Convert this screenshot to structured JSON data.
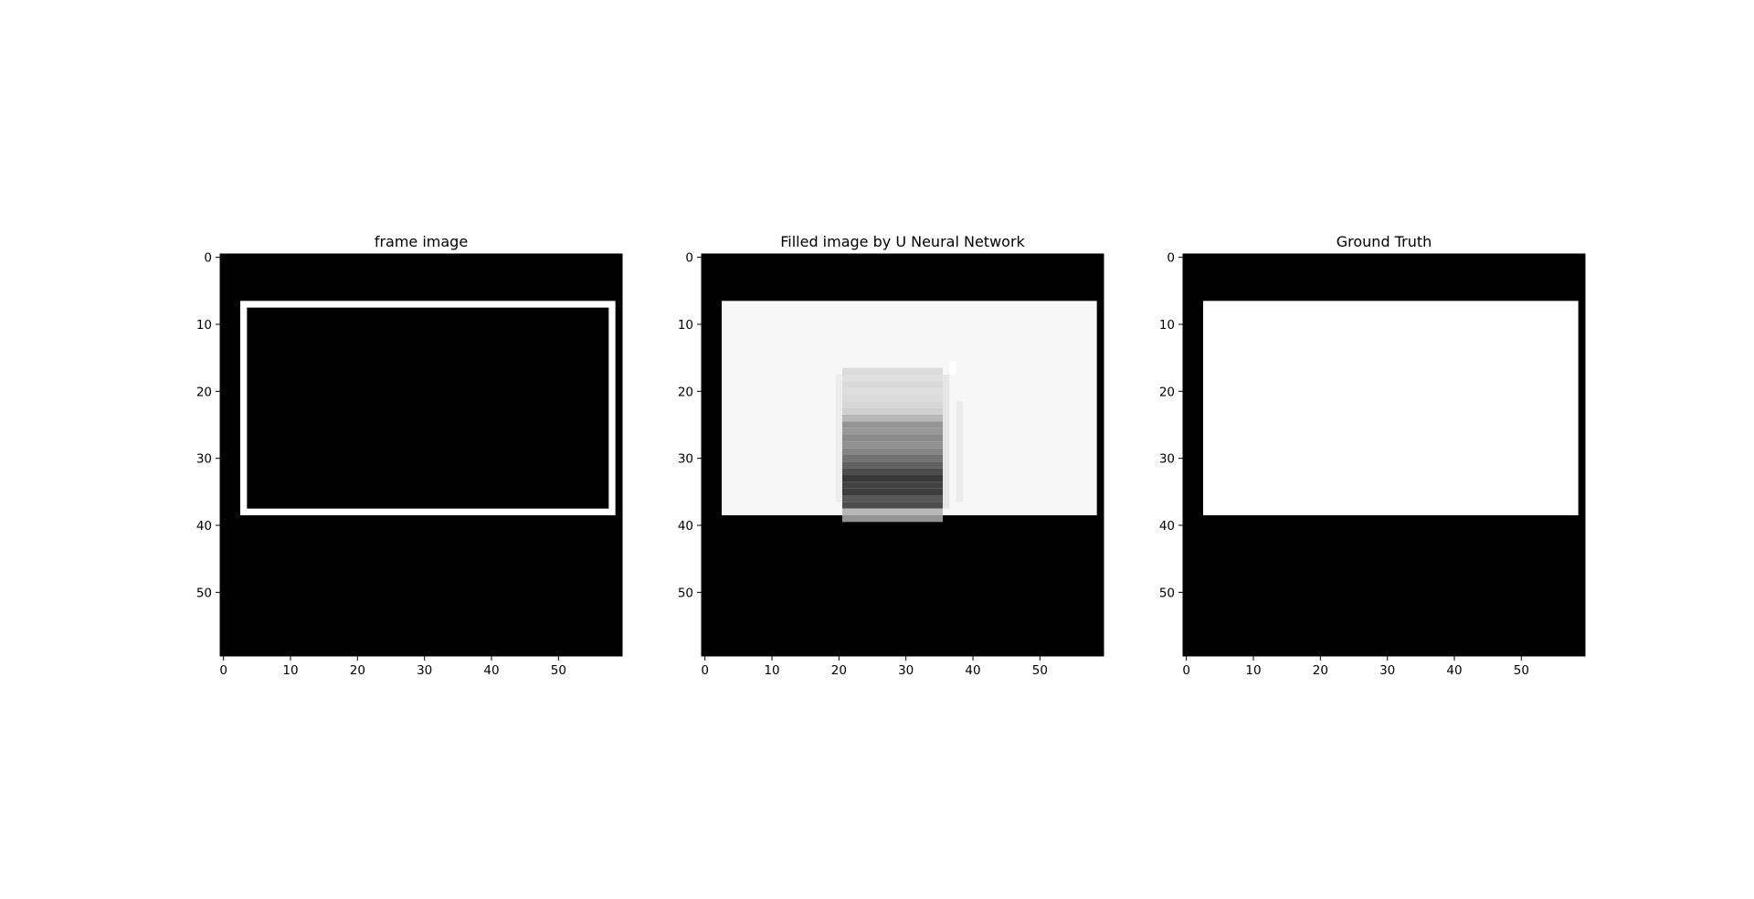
{
  "figure": {
    "background": "#ffffff"
  },
  "chart_data": [
    {
      "type": "heatmap",
      "title": "frame image",
      "grid_size": [
        60,
        60
      ],
      "xlim": [
        -0.5,
        59.5
      ],
      "ylim": [
        59.5,
        -0.5
      ],
      "x_ticks": [
        0,
        10,
        20,
        30,
        40,
        50
      ],
      "y_ticks": [
        0,
        10,
        20,
        30,
        40,
        50
      ],
      "background_value": 0,
      "colormap": "gray",
      "regions": [
        {
          "x": [
            3,
            58
          ],
          "y": [
            7,
            38
          ],
          "value": 1,
          "note": "outer frame"
        },
        {
          "x": [
            4,
            57
          ],
          "y": [
            8,
            37
          ],
          "value": 0,
          "note": "inner hole"
        }
      ]
    },
    {
      "type": "heatmap",
      "title": "Filled image by U Neural Network",
      "grid_size": [
        60,
        60
      ],
      "xlim": [
        -0.5,
        59.5
      ],
      "ylim": [
        59.5,
        -0.5
      ],
      "x_ticks": [
        0,
        10,
        20,
        30,
        40,
        50
      ],
      "y_ticks": [
        0,
        10,
        20,
        30,
        40,
        50
      ],
      "background_value": 0,
      "colormap": "gray",
      "regions": [
        {
          "x": [
            3,
            58
          ],
          "y": [
            7,
            38
          ],
          "value": 0.97
        },
        {
          "x": [
            21,
            35
          ],
          "y": [
            17,
            17
          ],
          "value": 0.86
        },
        {
          "x": [
            21,
            35
          ],
          "y": [
            18,
            18
          ],
          "value": 0.88
        },
        {
          "x": [
            21,
            35
          ],
          "y": [
            19,
            19
          ],
          "value": 0.85
        },
        {
          "x": [
            21,
            35
          ],
          "y": [
            20,
            20
          ],
          "value": 0.87
        },
        {
          "x": [
            21,
            35
          ],
          "y": [
            21,
            21
          ],
          "value": 0.86
        },
        {
          "x": [
            21,
            35
          ],
          "y": [
            22,
            22
          ],
          "value": 0.84
        },
        {
          "x": [
            21,
            35
          ],
          "y": [
            23,
            23
          ],
          "value": 0.82
        },
        {
          "x": [
            21,
            35
          ],
          "y": [
            24,
            24
          ],
          "value": 0.72
        },
        {
          "x": [
            21,
            35
          ],
          "y": [
            25,
            25
          ],
          "value": 0.58
        },
        {
          "x": [
            21,
            35
          ],
          "y": [
            26,
            26
          ],
          "value": 0.6
        },
        {
          "x": [
            21,
            35
          ],
          "y": [
            27,
            27
          ],
          "value": 0.55
        },
        {
          "x": [
            21,
            35
          ],
          "y": [
            28,
            28
          ],
          "value": 0.57
        },
        {
          "x": [
            21,
            35
          ],
          "y": [
            29,
            29
          ],
          "value": 0.52
        },
        {
          "x": [
            21,
            35
          ],
          "y": [
            30,
            30
          ],
          "value": 0.45
        },
        {
          "x": [
            21,
            35
          ],
          "y": [
            31,
            31
          ],
          "value": 0.38
        },
        {
          "x": [
            21,
            35
          ],
          "y": [
            32,
            32
          ],
          "value": 0.3
        },
        {
          "x": [
            21,
            35
          ],
          "y": [
            33,
            33
          ],
          "value": 0.22
        },
        {
          "x": [
            21,
            35
          ],
          "y": [
            34,
            34
          ],
          "value": 0.26
        },
        {
          "x": [
            21,
            35
          ],
          "y": [
            35,
            35
          ],
          "value": 0.24
        },
        {
          "x": [
            21,
            35
          ],
          "y": [
            36,
            36
          ],
          "value": 0.34
        },
        {
          "x": [
            21,
            35
          ],
          "y": [
            37,
            37
          ],
          "value": 0.3
        },
        {
          "x": [
            21,
            35
          ],
          "y": [
            38,
            38
          ],
          "value": 0.72
        },
        {
          "x": [
            21,
            35
          ],
          "y": [
            39,
            39
          ],
          "value": 0.58
        },
        {
          "x": [
            20,
            20
          ],
          "y": [
            18,
            36
          ],
          "value": 0.93
        },
        {
          "x": [
            36,
            36
          ],
          "y": [
            18,
            37
          ],
          "value": 0.9
        },
        {
          "x": [
            37,
            37
          ],
          "y": [
            16,
            17
          ],
          "value": 1.0
        },
        {
          "x": [
            38,
            38
          ],
          "y": [
            22,
            36
          ],
          "value": 0.92
        }
      ]
    },
    {
      "type": "heatmap",
      "title": "Ground Truth",
      "grid_size": [
        60,
        60
      ],
      "xlim": [
        -0.5,
        59.5
      ],
      "ylim": [
        59.5,
        -0.5
      ],
      "x_ticks": [
        0,
        10,
        20,
        30,
        40,
        50
      ],
      "y_ticks": [
        0,
        10,
        20,
        30,
        40,
        50
      ],
      "background_value": 0,
      "colormap": "gray",
      "regions": [
        {
          "x": [
            3,
            58
          ],
          "y": [
            7,
            38
          ],
          "value": 1
        }
      ]
    }
  ]
}
